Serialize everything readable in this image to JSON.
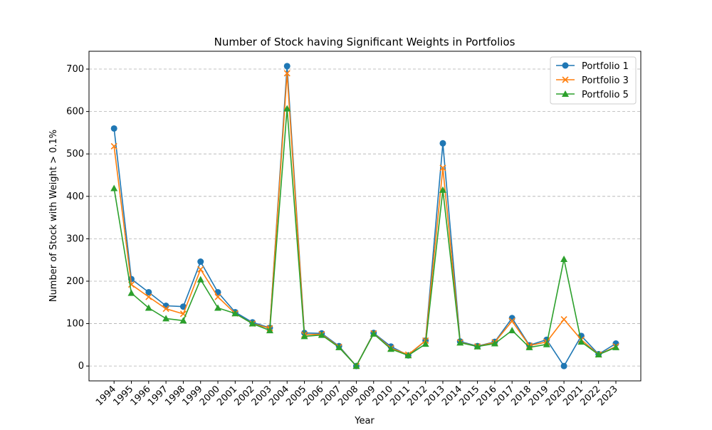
{
  "chart_data": {
    "type": "line",
    "title": "Number of Stock having Significant Weights in Portfolios",
    "xlabel": "Year",
    "ylabel": "Number of Stock with Weight > 0.1%",
    "x": [
      "1994",
      "1995",
      "1996",
      "1997",
      "1998",
      "1999",
      "2000",
      "2001",
      "2002",
      "2003",
      "2004",
      "2005",
      "2006",
      "2007",
      "2008",
      "2009",
      "2010",
      "2011",
      "2012",
      "2013",
      "2014",
      "2015",
      "2016",
      "2017",
      "2018",
      "2019",
      "2020",
      "2021",
      "2022",
      "2023"
    ],
    "ylim": [
      -35,
      742
    ],
    "yticks": [
      0,
      100,
      200,
      300,
      400,
      500,
      600,
      700
    ],
    "grid": "y-dashed",
    "legend_position": "top-right",
    "series": [
      {
        "name": "Portfolio 1",
        "color": "#1f77b4",
        "marker": "circle",
        "values": [
          560,
          205,
          174,
          142,
          140,
          246,
          174,
          127,
          103,
          90,
          707,
          78,
          77,
          47,
          0,
          78,
          46,
          25,
          60,
          525,
          58,
          47,
          57,
          113,
          49,
          62,
          0,
          71,
          28,
          53
        ]
      },
      {
        "name": "Portfolio 3",
        "color": "#ff7f0e",
        "marker": "x",
        "values": [
          518,
          192,
          163,
          135,
          123,
          228,
          163,
          124,
          100,
          89,
          690,
          74,
          75,
          45,
          0,
          77,
          42,
          27,
          60,
          467,
          56,
          46,
          56,
          106,
          48,
          57,
          110,
          62,
          27,
          46
        ]
      },
      {
        "name": "Portfolio 5",
        "color": "#2ca02c",
        "marker": "triangle",
        "values": [
          419,
          172,
          137,
          112,
          107,
          204,
          137,
          124,
          100,
          84,
          607,
          70,
          73,
          44,
          0,
          76,
          40,
          25,
          52,
          415,
          55,
          46,
          53,
          84,
          44,
          51,
          252,
          57,
          27,
          44
        ]
      }
    ]
  }
}
